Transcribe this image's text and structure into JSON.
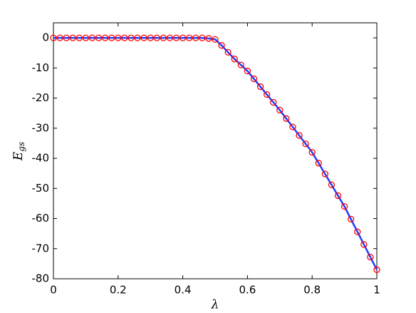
{
  "chart_data": {
    "type": "line",
    "xlabel": "λ",
    "ylabel": "E",
    "ylabel_sub": "gs",
    "x": [
      0,
      0.02,
      0.04,
      0.06,
      0.08,
      0.1,
      0.12,
      0.14,
      0.16,
      0.18,
      0.2,
      0.22,
      0.24,
      0.26,
      0.28,
      0.3,
      0.32,
      0.34,
      0.36,
      0.38,
      0.4,
      0.42,
      0.44,
      0.46,
      0.48,
      0.5,
      0.52,
      0.54,
      0.56,
      0.58,
      0.6,
      0.62,
      0.64,
      0.66,
      0.68,
      0.7,
      0.72,
      0.74,
      0.76,
      0.78,
      0.8,
      0.82,
      0.84,
      0.86,
      0.88,
      0.9,
      0.92,
      0.94,
      0.96,
      0.98,
      1
    ],
    "series": [
      {
        "color": "#1f3fff",
        "style": "line",
        "values": [
          0,
          0,
          0,
          0,
          0,
          0,
          0,
          0,
          0,
          0,
          0,
          0,
          0,
          0,
          0,
          0,
          0,
          0,
          0,
          0,
          0,
          0,
          0,
          0,
          -0.2,
          -0.5,
          -2.5,
          -4.8,
          -7,
          -9,
          -11,
          -13.6,
          -16.2,
          -18.8,
          -21.4,
          -24,
          -26.8,
          -29.6,
          -32.4,
          -35.2,
          -38,
          -41.6,
          -45.2,
          -48.8,
          -52.4,
          -56,
          -60.2,
          -64.4,
          -68.6,
          -72.8,
          -77
        ]
      },
      {
        "color": "#ff0000",
        "style": "marker",
        "values": [
          0,
          0,
          0,
          0,
          0,
          0,
          0,
          0,
          0,
          0,
          0,
          0,
          0,
          0,
          0,
          0,
          0,
          0,
          0,
          0,
          0,
          0,
          0,
          0,
          -0.2,
          -0.5,
          -2.5,
          -4.8,
          -7,
          -9,
          -11,
          -13.6,
          -16.2,
          -18.8,
          -21.4,
          -24,
          -26.8,
          -29.6,
          -32.4,
          -35.2,
          -38,
          -41.6,
          -45.2,
          -48.8,
          -52.4,
          -56,
          -60.2,
          -64.4,
          -68.6,
          -72.8,
          -77
        ]
      }
    ],
    "xlim": [
      0,
      1
    ],
    "xticks": [
      0,
      0.2,
      0.4,
      0.6,
      0.8,
      1
    ],
    "ylim": [
      -80,
      5
    ],
    "yticks": [
      0,
      -10,
      -20,
      -30,
      -40,
      -50,
      -60,
      -70,
      -80
    ],
    "grid": false
  }
}
